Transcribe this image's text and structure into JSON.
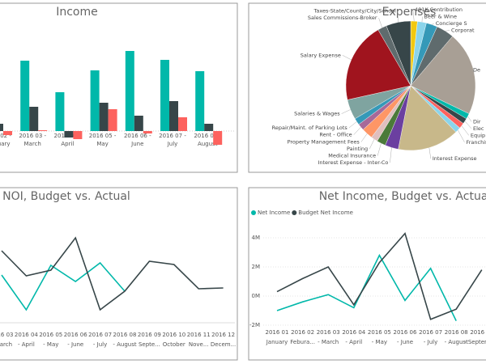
{
  "chart_data": [
    {
      "type": "bar",
      "title": "Income",
      "categories": [
        [
          "2016 02 -",
          "February"
        ],
        [
          "2016 03 -",
          "March"
        ],
        [
          "2016 04 -",
          "April"
        ],
        [
          "2016 05 -",
          "May"
        ],
        [
          "2016 06 -",
          "June"
        ],
        [
          "2016 07 -",
          "July"
        ],
        [
          "2016 08 -",
          "August"
        ]
      ],
      "series": [
        {
          "color": "#01B8AA",
          "values": [
            null,
            87,
            48,
            75,
            99,
            88,
            74
          ]
        },
        {
          "color": "#374649",
          "values": [
            9,
            30,
            -8,
            35,
            19,
            37,
            9
          ]
        },
        {
          "color": "#FD625E",
          "values": [
            -5,
            1,
            -10,
            27,
            -3,
            17,
            -17
          ]
        }
      ],
      "ylim": [
        -20,
        100
      ]
    },
    {
      "type": "pie",
      "title": "Expenses",
      "categories": [
        "401K Contribution",
        "Beer & Wine",
        "Concierge S",
        "Corporat",
        "De",
        "Dir",
        "Elec",
        "Equip",
        "Franchis",
        "Interest Expense",
        "Interest Expense - Inter-Co",
        "Medical Insurance",
        "Painting",
        "Property Management Fees",
        "Rent - Office",
        "Repair/Maint. of Parking Lots",
        "Salaries & Wages",
        "Salary Expense",
        "Sales Commissions-Broker",
        "Taxes-State/County/City/School"
      ],
      "values": [
        6,
        8,
        10,
        16,
        75,
        5,
        5,
        5,
        5,
        55,
        12,
        8,
        6,
        10,
        6,
        6,
        18,
        72,
        8,
        22
      ],
      "colors": [
        "#F2C80F",
        "#8AD4EB",
        "#3599B8",
        "#5F6B6D",
        "#A89F95",
        "#01B8AA",
        "#374649",
        "#FD625E",
        "#8AD4EB",
        "#C8B88A",
        "#6B3FA0",
        "#4B7A3A",
        "#DFBFBF",
        "#FE9666",
        "#A66999",
        "#3599B8",
        "#7FA4A0",
        "#A0141E",
        "#5F6B6D",
        "#374649"
      ]
    },
    {
      "type": "line",
      "title": "NOI, Budget vs. Actual",
      "categories": [
        [
          "2016 03",
          "- March"
        ],
        [
          "2016 04",
          "- April"
        ],
        [
          "2016 05",
          "- May"
        ],
        [
          "2016 06",
          "- June"
        ],
        [
          "2016 07",
          "- July"
        ],
        [
          "2016 08",
          "- August"
        ],
        [
          "2016 09",
          "Septe..."
        ],
        [
          "2016 10",
          "October"
        ],
        [
          "2016 11",
          "Nove..."
        ],
        [
          "2016 12",
          "Decem..."
        ]
      ],
      "series": [
        {
          "color": "#01B8AA",
          "values": [
            58,
            15,
            70,
            50,
            73,
            38,
            null,
            null,
            null,
            null
          ]
        },
        {
          "color": "#374649",
          "values": [
            88,
            57,
            64,
            104,
            15,
            38,
            75,
            71,
            41,
            42
          ]
        }
      ],
      "ylim": [
        0,
        110
      ]
    },
    {
      "type": "line",
      "title": "Net Income, Budget vs. Actual",
      "categories": [
        [
          "2016 01",
          "January"
        ],
        [
          "2016 02",
          "Febura..."
        ],
        [
          "2016 03",
          "- March"
        ],
        [
          "2016 04",
          "- April"
        ],
        [
          "2016 05",
          "- May"
        ],
        [
          "2016 06",
          "- June"
        ],
        [
          "2016 07",
          "- July"
        ],
        [
          "2016 08",
          "- August"
        ],
        [
          "2016 09",
          "- September"
        ]
      ],
      "series": [
        {
          "name": "Net Income",
          "color": "#01B8AA",
          "values": [
            -1.0,
            -0.4,
            0.1,
            -0.8,
            2.8,
            -0.3,
            1.9,
            -1.7,
            null
          ]
        },
        {
          "name": "Budget Net Income",
          "color": "#374649",
          "values": [
            0.3,
            1.2,
            2.0,
            -0.6,
            2.3,
            4.3,
            -1.6,
            -0.9,
            1.8
          ]
        }
      ],
      "ylim": [
        -2.2,
        4.8
      ],
      "yticks": [
        {
          "value": -2,
          "label": "-2M"
        },
        {
          "value": 0,
          "label": "0M"
        },
        {
          "value": 2,
          "label": "2M"
        },
        {
          "value": 4,
          "label": "4M"
        }
      ],
      "grid": true
    }
  ]
}
